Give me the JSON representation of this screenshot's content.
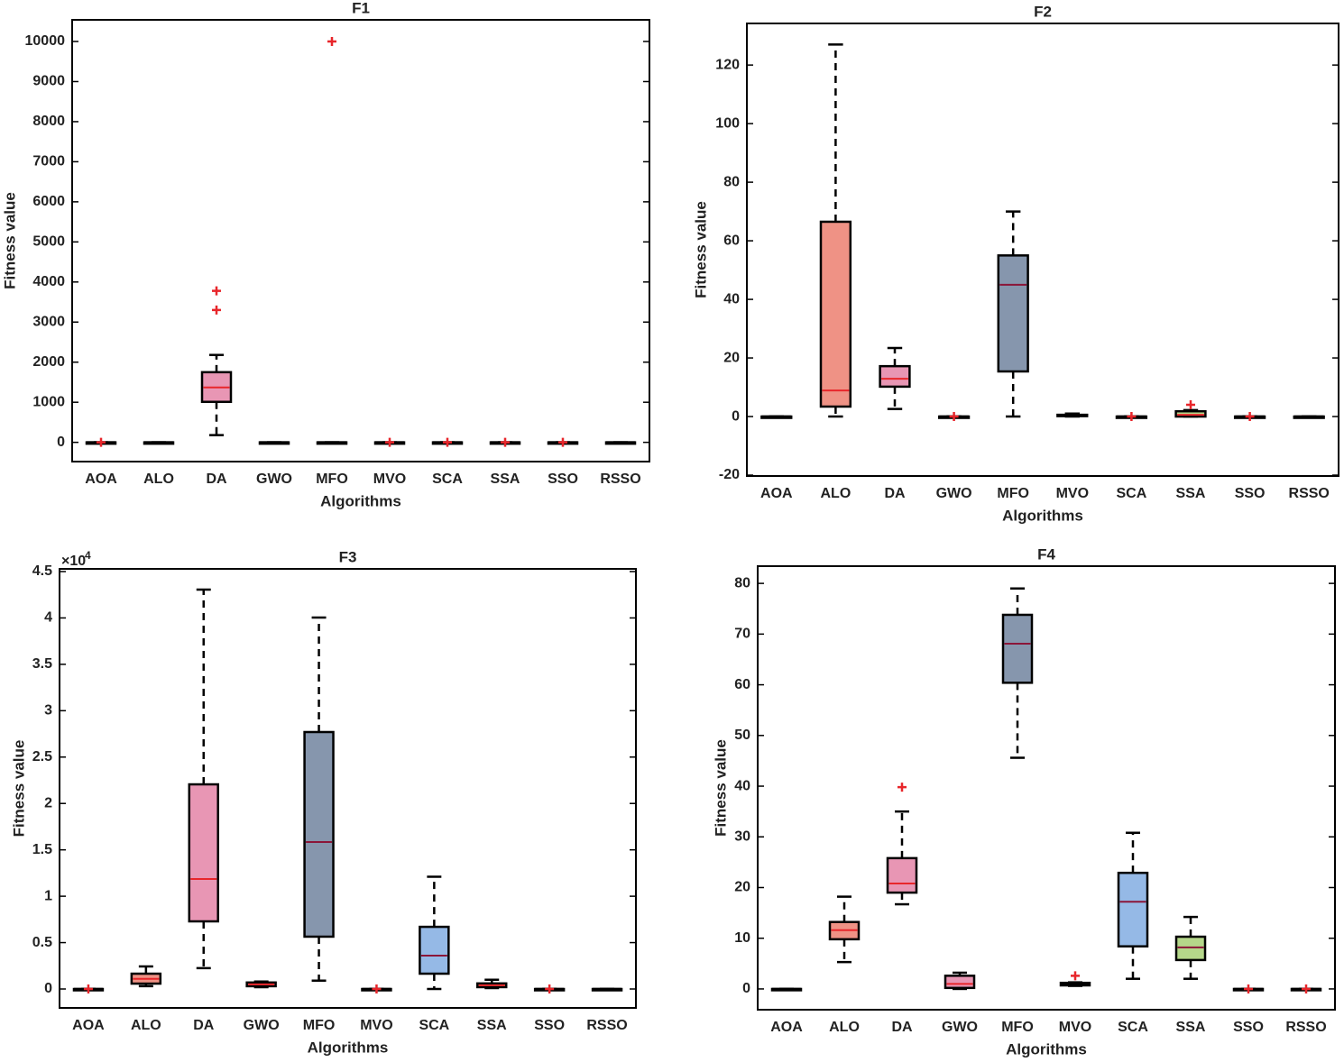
{
  "chart_data": [
    {
      "type": "box",
      "title": "F1",
      "xlabel": "Algorithms",
      "ylabel": "Fitness value",
      "categories": [
        "AOA",
        "ALO",
        "DA",
        "GWO",
        "MFO",
        "MVO",
        "SCA",
        "SSA",
        "SSO",
        "RSSO"
      ],
      "boxes": {
        "low": [
          0,
          0,
          180,
          0,
          0,
          0,
          0,
          0,
          0,
          0
        ],
        "q1": [
          0,
          0,
          1010,
          0,
          0,
          0,
          0,
          0,
          0,
          0
        ],
        "median": [
          0,
          0,
          1370,
          0,
          0,
          0,
          0,
          0,
          0,
          0
        ],
        "q3": [
          0,
          0,
          1750,
          0,
          0,
          0,
          0,
          0,
          0,
          0
        ],
        "high": [
          0,
          0,
          2180,
          0,
          0,
          0,
          0,
          0,
          0,
          0
        ],
        "outliers": [
          [
            0
          ],
          [],
          [
            3780,
            3300
          ],
          [],
          [
            10000
          ],
          [
            0
          ],
          [
            0
          ],
          [
            0
          ],
          [
            0
          ],
          []
        ]
      },
      "box_colors": [
        "#c9a0dc",
        "#ef9285",
        "#e896b4",
        "#e896b4",
        "#8696ad",
        "#8c7b9e",
        "#95b9e6",
        "#b5d78a",
        "#f0c0c0",
        "#c0c0c0"
      ],
      "median_colors": [
        "#e8262b",
        "#e8262b",
        "#e8262b",
        "#e8262b",
        "#8b1538",
        "#e8262b",
        "#8b1538",
        "#e8262b",
        "#e8262b",
        "#e8262b"
      ],
      "outlier_color": "#e8262b",
      "ylim": [
        -480,
        10540
      ],
      "yticks": [
        0,
        1000,
        2000,
        3000,
        4000,
        5000,
        6000,
        7000,
        8000,
        9000,
        10000
      ]
    },
    {
      "type": "box",
      "title": "F2",
      "xlabel": "Algorithms",
      "ylabel": "Fitness value",
      "categories": [
        "AOA",
        "ALO",
        "DA",
        "GWO",
        "MFO",
        "MVO",
        "SCA",
        "SSA",
        "SSO",
        "RSSO"
      ],
      "boxes": {
        "low": [
          0,
          0,
          2.6,
          0,
          0,
          0,
          0,
          0,
          0,
          0
        ],
        "q1": [
          0,
          3.4,
          10.2,
          0,
          15.4,
          0.2,
          0,
          0,
          0,
          0
        ],
        "median": [
          0,
          8.9,
          12.9,
          0,
          45,
          0.4,
          0,
          0.6,
          0,
          0
        ],
        "q3": [
          0,
          66.5,
          17.2,
          0,
          55,
          0.6,
          0,
          1.8,
          0,
          0
        ],
        "high": [
          0,
          127,
          23.4,
          0,
          70,
          1,
          0,
          2.2,
          0,
          0
        ],
        "outliers": [
          [],
          [],
          [],
          [
            0
          ],
          [],
          [],
          [
            0
          ],
          [
            4
          ],
          [
            0
          ],
          []
        ]
      },
      "box_colors": [
        "#c9a0dc",
        "#ef9285",
        "#e896b4",
        "#e896b4",
        "#8696ad",
        "#8c7b9e",
        "#95b9e6",
        "#b5d78a",
        "#f0c0c0",
        "#c0c0c0"
      ],
      "median_colors": [
        "#e8262b",
        "#e8262b",
        "#e8262b",
        "#e8262b",
        "#8b1538",
        "#e8262b",
        "#8b1538",
        "#e8262b",
        "#e8262b",
        "#e8262b"
      ],
      "outlier_color": "#e8262b",
      "ylim": [
        -20.3,
        134.2
      ],
      "yticks": [
        -20,
        0,
        20,
        40,
        60,
        80,
        100,
        120
      ]
    },
    {
      "type": "box",
      "title": "F3",
      "xlabel": "Algorithms",
      "ylabel": "Fitness value",
      "y_scale_label": "×10",
      "y_scale_exponent": "4",
      "categories": [
        "AOA",
        "ALO",
        "DA",
        "GWO",
        "MFO",
        "MVO",
        "SCA",
        "SSA",
        "SSO",
        "RSSO"
      ],
      "boxes": {
        "low": [
          0,
          300,
          2250,
          200,
          900,
          0,
          0,
          100,
          0,
          0
        ],
        "q1": [
          0,
          580,
          7290,
          300,
          5640,
          0,
          1650,
          200,
          0,
          0
        ],
        "median": [
          0,
          1100,
          11860,
          500,
          15840,
          0,
          3600,
          400,
          0,
          0
        ],
        "q3": [
          0,
          1650,
          22060,
          700,
          27700,
          0,
          6700,
          600,
          0,
          0
        ],
        "high": [
          0,
          2430,
          43050,
          800,
          40040,
          0,
          12100,
          1000,
          0,
          0
        ],
        "outliers": [
          [
            0
          ],
          [],
          [],
          [],
          [],
          [
            0
          ],
          [],
          [],
          [
            0
          ],
          []
        ]
      },
      "box_colors": [
        "#c9a0dc",
        "#ef9285",
        "#e896b4",
        "#e896b4",
        "#8696ad",
        "#8c7b9e",
        "#95b9e6",
        "#c8a060",
        "#f0c0c0",
        "#c0c0c0"
      ],
      "median_colors": [
        "#e8262b",
        "#e8262b",
        "#e8262b",
        "#e8262b",
        "#8b1538",
        "#e8262b",
        "#8b1538",
        "#e8262b",
        "#e8262b",
        "#e8262b"
      ],
      "outlier_color": "#e8262b",
      "ylim": [
        -2040,
        45290
      ],
      "yticks": [
        {
          "value": 0,
          "label": "0"
        },
        {
          "value": 5000,
          "label": "0.5"
        },
        {
          "value": 10000,
          "label": "1"
        },
        {
          "value": 15000,
          "label": "1.5"
        },
        {
          "value": 20000,
          "label": "2"
        },
        {
          "value": 25000,
          "label": "2.5"
        },
        {
          "value": 30000,
          "label": "3"
        },
        {
          "value": 35000,
          "label": "3.5"
        },
        {
          "value": 40000,
          "label": "4"
        },
        {
          "value": 45000,
          "label": "4.5"
        }
      ]
    },
    {
      "type": "box",
      "title": "F4",
      "xlabel": "Algorithms",
      "ylabel": "Fitness value",
      "categories": [
        "AOA",
        "ALO",
        "DA",
        "GWO",
        "MFO",
        "MVO",
        "SCA",
        "SSA",
        "SSO",
        "RSSO"
      ],
      "boxes": {
        "low": [
          0,
          5.3,
          16.7,
          0,
          45.6,
          0.6,
          2,
          2,
          0,
          0
        ],
        "q1": [
          0,
          9.8,
          19,
          0.2,
          60.4,
          0.7,
          8.4,
          5.7,
          0,
          0
        ],
        "median": [
          0,
          11.6,
          20.8,
          1,
          68.1,
          1,
          17.2,
          8.2,
          0,
          0
        ],
        "q3": [
          0,
          13.2,
          25.8,
          2.6,
          73.8,
          1.2,
          22.9,
          10.3,
          0,
          0
        ],
        "high": [
          0,
          18.2,
          35,
          3.2,
          79,
          1.3,
          30.8,
          14.2,
          0,
          0
        ],
        "outliers": [
          [],
          [],
          [
            39.8
          ],
          [],
          [],
          [
            2.6
          ],
          [],
          [],
          [
            0
          ],
          [
            0
          ]
        ]
      },
      "box_colors": [
        "#c9a0dc",
        "#ef9285",
        "#e896b4",
        "#e896b4",
        "#8696ad",
        "#8c7b9e",
        "#95b9e6",
        "#b5d78a",
        "#f0c0c0",
        "#c0c0c0"
      ],
      "median_colors": [
        "#e8262b",
        "#e8262b",
        "#e8262b",
        "#e8262b",
        "#8b1538",
        "#e8262b",
        "#8b1538",
        "#8b1538",
        "#e8262b",
        "#e8262b"
      ],
      "outlier_color": "#e8262b",
      "ylim": [
        -4.1,
        83.4
      ],
      "yticks": [
        0,
        10,
        20,
        30,
        40,
        50,
        60,
        70,
        80
      ]
    }
  ]
}
